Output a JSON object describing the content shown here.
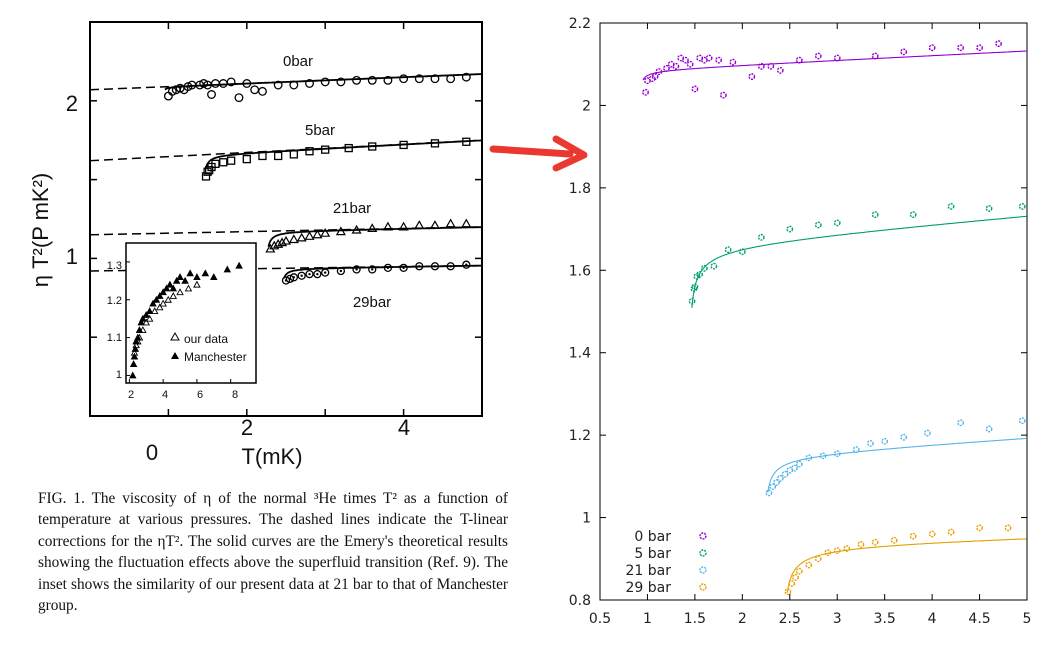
{
  "caption": {
    "label": "FIG. 1.",
    "text": "The viscosity of η of the normal ³He times T² as a function of temperature at various pressures. The dashed lines indicate the T-linear corrections for the ηT². The solid curves are the Emery's theoretical results showing the fluctuation effects above the superfluid transition (Ref. 9). The inset shows the similarity of our present data at 21 bar to that of Manchester group."
  },
  "colors": {
    "arrow": "#e8231a",
    "s0": "#9400d3",
    "s5": "#009e73",
    "s21": "#56b4e9",
    "s29": "#e69f00"
  },
  "chart_data": [
    {
      "type": "scatter",
      "xlabel": "T(mK)",
      "ylabel": "η T²(P mK²)",
      "xlim": [
        0,
        5
      ],
      "ylim": [
        0,
        2.5
      ],
      "xticks": [
        "0",
        "2",
        "4"
      ],
      "yticks": [
        "1",
        "2"
      ],
      "grid": false,
      "series": [
        {
          "name": "0bar",
          "marker": "circle",
          "x": [
            1.0,
            1.05,
            1.1,
            1.15,
            1.2,
            1.25,
            1.3,
            1.4,
            1.45,
            1.5,
            1.55,
            1.6,
            1.7,
            1.8,
            1.9,
            2.0,
            2.1,
            2.2,
            2.4,
            2.6,
            2.8,
            3.0,
            3.2,
            3.4,
            3.6,
            3.8,
            4.0,
            4.2,
            4.4,
            4.6,
            4.8
          ],
          "y": [
            2.03,
            2.06,
            2.07,
            2.08,
            2.07,
            2.09,
            2.1,
            2.1,
            2.11,
            2.1,
            2.04,
            2.11,
            2.11,
            2.12,
            2.02,
            2.11,
            2.07,
            2.06,
            2.1,
            2.1,
            2.11,
            2.12,
            2.12,
            2.13,
            2.13,
            2.13,
            2.14,
            2.14,
            2.14,
            2.14,
            2.15
          ]
        },
        {
          "name": "5bar",
          "marker": "square",
          "x": [
            1.48,
            1.5,
            1.52,
            1.55,
            1.6,
            1.7,
            1.8,
            2.0,
            2.2,
            2.4,
            2.6,
            2.8,
            3.0,
            3.3,
            3.6,
            4.0,
            4.4,
            4.8
          ],
          "y": [
            1.52,
            1.55,
            1.56,
            1.58,
            1.6,
            1.61,
            1.62,
            1.63,
            1.65,
            1.65,
            1.66,
            1.68,
            1.69,
            1.7,
            1.71,
            1.72,
            1.73,
            1.74
          ]
        },
        {
          "name": "21bar",
          "marker": "triangle",
          "x": [
            2.3,
            2.35,
            2.4,
            2.45,
            2.5,
            2.6,
            2.7,
            2.8,
            2.9,
            3.0,
            3.2,
            3.4,
            3.6,
            3.8,
            4.0,
            4.2,
            4.4,
            4.6,
            4.8
          ],
          "y": [
            1.06,
            1.08,
            1.09,
            1.1,
            1.11,
            1.12,
            1.13,
            1.14,
            1.15,
            1.16,
            1.17,
            1.18,
            1.19,
            1.2,
            1.2,
            1.21,
            1.21,
            1.22,
            1.22
          ]
        },
        {
          "name": "29bar",
          "marker": "circle-dot",
          "x": [
            2.5,
            2.55,
            2.6,
            2.7,
            2.8,
            2.9,
            3.0,
            3.2,
            3.4,
            3.6,
            3.8,
            4.0,
            4.2,
            4.4,
            4.6,
            4.8
          ],
          "y": [
            0.86,
            0.87,
            0.88,
            0.89,
            0.9,
            0.9,
            0.91,
            0.92,
            0.93,
            0.93,
            0.94,
            0.94,
            0.95,
            0.95,
            0.95,
            0.96
          ]
        }
      ]
    },
    {
      "type": "scatter",
      "xlim": [
        1.8,
        9.5
      ],
      "ylim": [
        0.98,
        1.35
      ],
      "xticks": [
        "2",
        "4",
        "6",
        "8"
      ],
      "yticks": [
        "1",
        "1.1",
        "1.2",
        "1.3"
      ],
      "grid": false,
      "series": [
        {
          "name": "our data",
          "marker": "open-triangle",
          "x": [
            2.3,
            2.4,
            2.5,
            2.6,
            2.8,
            3.0,
            3.2,
            3.5,
            3.8,
            4.0,
            4.3,
            4.6,
            5.0,
            5.5,
            6.0
          ],
          "y": [
            1.06,
            1.08,
            1.09,
            1.1,
            1.12,
            1.14,
            1.15,
            1.17,
            1.18,
            1.19,
            1.2,
            1.21,
            1.22,
            1.23,
            1.24
          ]
        },
        {
          "name": "Manchester",
          "marker": "filled-triangle",
          "x": [
            2.2,
            2.25,
            2.3,
            2.35,
            2.4,
            2.5,
            2.6,
            2.7,
            2.8,
            3.0,
            3.2,
            3.4,
            3.6,
            3.8,
            4.0,
            4.2,
            4.4,
            4.6,
            4.8,
            5.0,
            5.3,
            5.6,
            6.0,
            6.5,
            7.0,
            7.8,
            8.5
          ],
          "y": [
            1.0,
            1.03,
            1.05,
            1.07,
            1.09,
            1.1,
            1.12,
            1.14,
            1.15,
            1.16,
            1.17,
            1.19,
            1.2,
            1.21,
            1.22,
            1.23,
            1.24,
            1.23,
            1.25,
            1.26,
            1.25,
            1.27,
            1.26,
            1.27,
            1.26,
            1.28,
            1.29
          ]
        }
      ]
    },
    {
      "type": "scatter",
      "xlim": [
        0.5,
        5
      ],
      "ylim": [
        0.8,
        2.2
      ],
      "xticks": [
        "0.5",
        "1",
        "1.5",
        "2",
        "2.5",
        "3",
        "3.5",
        "4",
        "4.5",
        "5"
      ],
      "yticks": [
        "0.8",
        "1",
        "1.2",
        "1.4",
        "1.6",
        "1.8",
        "2",
        "2.2"
      ],
      "grid": false,
      "legend_position": "bottom-left",
      "series": [
        {
          "name": "0 bar",
          "color": "#9400d3",
          "x": [
            0.98,
            1.0,
            1.05,
            1.08,
            1.12,
            1.2,
            1.25,
            1.3,
            1.35,
            1.4,
            1.45,
            1.5,
            1.55,
            1.6,
            1.65,
            1.75,
            1.8,
            1.9,
            2.1,
            2.2,
            2.3,
            2.4,
            2.6,
            2.8,
            3.0,
            3.4,
            3.7,
            4.0,
            4.3,
            4.5,
            4.7
          ],
          "y": [
            2.032,
            2.06,
            2.065,
            2.07,
            2.082,
            2.09,
            2.1,
            2.095,
            2.115,
            2.11,
            2.1,
            2.04,
            2.115,
            2.11,
            2.115,
            2.11,
            2.025,
            2.105,
            2.07,
            2.095,
            2.095,
            2.085,
            2.11,
            2.12,
            2.115,
            2.12,
            2.13,
            2.14,
            2.14,
            2.14,
            2.15
          ]
        },
        {
          "name": "5 bar",
          "color": "#009e73",
          "x": [
            1.47,
            1.49,
            1.5,
            1.52,
            1.55,
            1.6,
            1.7,
            1.85,
            2.0,
            2.2,
            2.5,
            2.8,
            3.0,
            3.4,
            3.8,
            4.2,
            4.6,
            4.95
          ],
          "y": [
            1.525,
            1.555,
            1.56,
            1.585,
            1.59,
            1.605,
            1.61,
            1.65,
            1.645,
            1.68,
            1.7,
            1.71,
            1.715,
            1.735,
            1.735,
            1.755,
            1.75,
            1.755
          ]
        },
        {
          "name": "21 bar",
          "color": "#56b4e9",
          "x": [
            2.28,
            2.32,
            2.36,
            2.4,
            2.45,
            2.5,
            2.55,
            2.6,
            2.7,
            2.85,
            3.0,
            3.2,
            3.35,
            3.5,
            3.7,
            3.95,
            4.3,
            4.6,
            4.95
          ],
          "y": [
            1.06,
            1.075,
            1.085,
            1.095,
            1.105,
            1.115,
            1.12,
            1.13,
            1.145,
            1.15,
            1.155,
            1.165,
            1.18,
            1.185,
            1.195,
            1.205,
            1.23,
            1.215,
            1.235
          ]
        },
        {
          "name": "29 bar",
          "color": "#e69f00",
          "x": [
            2.48,
            2.52,
            2.56,
            2.6,
            2.7,
            2.8,
            2.9,
            3.0,
            3.1,
            3.25,
            3.4,
            3.6,
            3.8,
            4.0,
            4.2,
            4.5,
            4.8
          ],
          "y": [
            0.82,
            0.84,
            0.855,
            0.87,
            0.885,
            0.9,
            0.915,
            0.92,
            0.925,
            0.935,
            0.94,
            0.945,
            0.955,
            0.96,
            0.965,
            0.975,
            0.975
          ]
        }
      ]
    }
  ]
}
